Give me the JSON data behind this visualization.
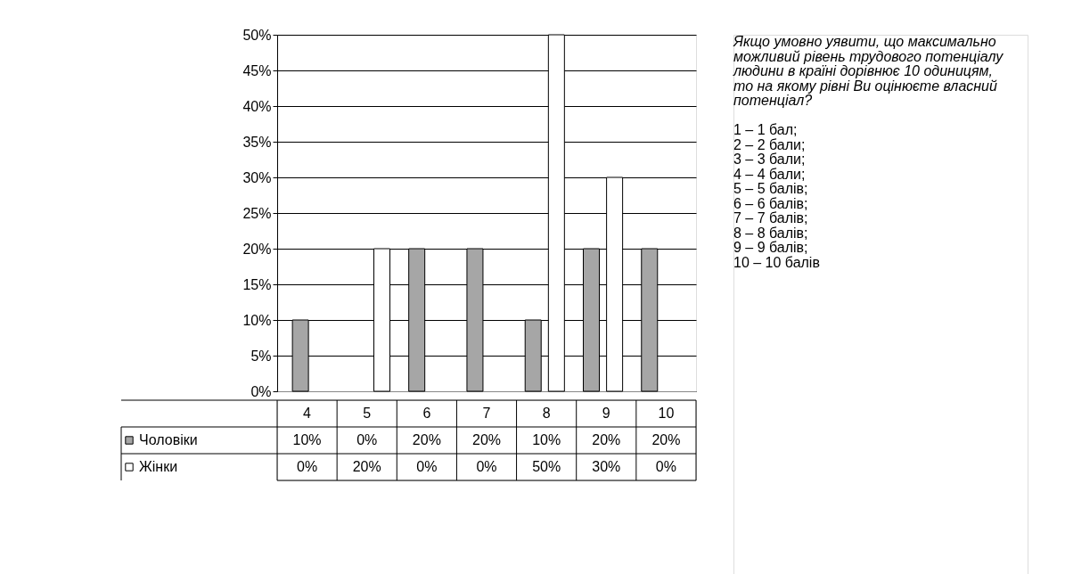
{
  "chart_data": {
    "type": "bar",
    "categories": [
      "4",
      "5",
      "6",
      "7",
      "8",
      "9",
      "10"
    ],
    "series": [
      {
        "name": "Чоловіки",
        "color": "#a6a6a6",
        "values": [
          10,
          0,
          20,
          20,
          10,
          20,
          20
        ],
        "value_labels": [
          "10%",
          "0%",
          "20%",
          "20%",
          "10%",
          "20%",
          "20%"
        ]
      },
      {
        "name": "Жінки",
        "color": "#ffffff",
        "values": [
          0,
          20,
          0,
          0,
          50,
          30,
          0
        ],
        "value_labels": [
          "0%",
          "20%",
          "0%",
          "0%",
          "50%",
          "30%",
          "0%"
        ]
      }
    ],
    "ylim": [
      0,
      50
    ],
    "yticks": [
      {
        "value": 0,
        "label": "0%"
      },
      {
        "value": 5,
        "label": "5%"
      },
      {
        "value": 10,
        "label": "10%"
      },
      {
        "value": 15,
        "label": "15%"
      },
      {
        "value": 20,
        "label": "20%"
      },
      {
        "value": 25,
        "label": "25%"
      },
      {
        "value": 30,
        "label": "30%"
      },
      {
        "value": 35,
        "label": "35%"
      },
      {
        "value": 40,
        "label": "40%"
      },
      {
        "value": 45,
        "label": "45%"
      },
      {
        "value": 50,
        "label": "50%"
      }
    ],
    "grid": "y",
    "legend": "bottom",
    "annotations": [
      "Якщо умовно уявити, що максимально можливий рівень трудового потенціалу людини в країні дорівнює 10 одиницям, то на якому рівні Ви оцінюєте власний потенціал?",
      "1 – 1 бал;",
      "2 – 2 бали;",
      "3 – 3 бали;",
      "4 – 4 бали;",
      "5 – 5 балів;",
      "6 – 6 балів;",
      "7 – 7 балів;",
      "8 – 8 балів;",
      "9 – 9 балів;",
      "10 – 10 балів"
    ]
  }
}
